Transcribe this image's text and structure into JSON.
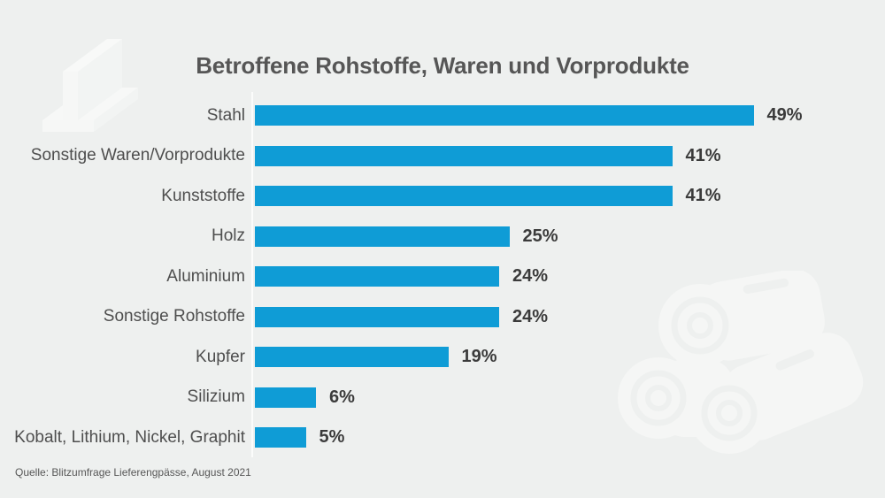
{
  "title": "Betroffene Rohstoffe, Waren und Vorprodukte",
  "source": "Quelle: Blitzumfrage Lieferengpässe, August 2021",
  "colors": {
    "background": "#eef0ef",
    "bar": "#0f9cd6",
    "title_text": "#565656",
    "category_text": "#4e4e4e",
    "value_text": "#3b3b3b",
    "axis_line": "#fbfcfb",
    "watermark": "#f5f6f5"
  },
  "icons": {
    "top_left": "steel-beam-icon",
    "bottom_right": "wood-logs-icon"
  },
  "chart_data": {
    "type": "bar",
    "orientation": "horizontal",
    "title": "Betroffene Rohstoffe, Waren und Vorprodukte",
    "categories": [
      "Stahl",
      "Sonstige Waren/Vorprodukte",
      "Kunststoffe",
      "Holz",
      "Aluminium",
      "Sonstige Rohstoffe",
      "Kupfer",
      "Silizium",
      "Kobalt, Lithium, Nickel, Graphit"
    ],
    "values": [
      49,
      41,
      41,
      25,
      24,
      24,
      19,
      6,
      5
    ],
    "value_labels": [
      "49%",
      "41%",
      "41%",
      "25%",
      "24%",
      "24%",
      "19%",
      "6%",
      "5%"
    ],
    "unit": "%",
    "xlim": [
      0,
      49
    ],
    "grid": false,
    "legend": false,
    "bar_color": "#0f9cd6",
    "source": "Quelle: Blitzumfrage Lieferengpässe, August 2021"
  }
}
